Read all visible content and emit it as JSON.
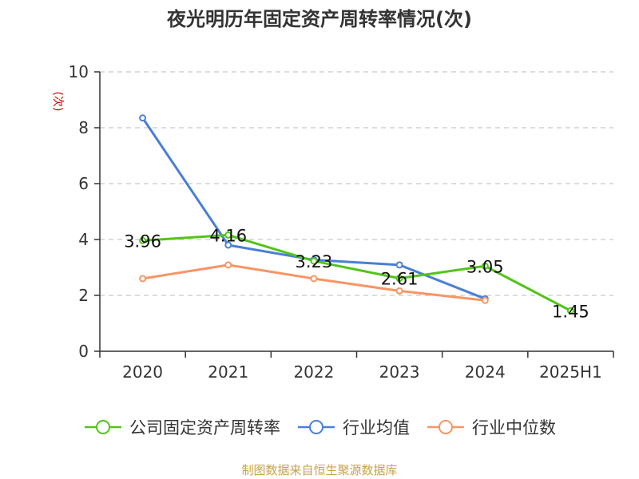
{
  "title": "夜光明历年固定资产周转率情况(次)",
  "source": "制图数据来自恒生聚源数据库",
  "colors": {
    "axis": "#333333",
    "grid": "#bbbbbb",
    "unit": "#cc0000"
  },
  "chart_data": {
    "type": "line",
    "title": "夜光明历年固定资产周转率情况(次)",
    "ylabel": "(次)",
    "xlabel": "",
    "categories": [
      "2020",
      "2021",
      "2022",
      "2023",
      "2024",
      "2025H1"
    ],
    "ylim": [
      0,
      10
    ],
    "yticks": [
      0,
      2,
      4,
      6,
      8,
      10
    ],
    "grid": true,
    "legend_position": "bottom",
    "series": [
      {
        "name": "公司固定资产周转率",
        "color": "#52c41a",
        "values": [
          3.96,
          4.16,
          3.23,
          2.61,
          3.05,
          1.45
        ],
        "labels": [
          "3.96",
          "4.16",
          "3.23",
          "2.61",
          "3.05",
          "1.45"
        ]
      },
      {
        "name": "行业均值",
        "color": "#4a7fd6",
        "values": [
          8.35,
          3.8,
          3.27,
          3.09,
          1.88,
          null
        ]
      },
      {
        "name": "行业中位数",
        "color": "#f79565",
        "values": [
          2.6,
          3.09,
          2.6,
          2.16,
          1.82,
          null
        ]
      }
    ]
  }
}
